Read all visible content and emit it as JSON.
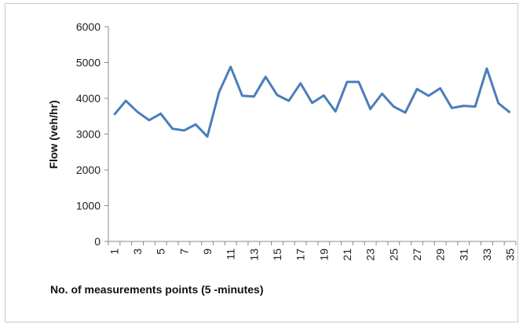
{
  "chart_data": {
    "type": "line",
    "xlabel": "No. of measurements points (5 -minutes)",
    "ylabel": "Flow (veh/hr)",
    "ylim": [
      0,
      6000
    ],
    "yticks": [
      0,
      1000,
      2000,
      3000,
      4000,
      5000,
      6000
    ],
    "x": [
      1,
      2,
      3,
      4,
      5,
      6,
      7,
      8,
      9,
      10,
      11,
      12,
      13,
      14,
      15,
      16,
      17,
      18,
      19,
      20,
      21,
      22,
      23,
      24,
      25,
      26,
      27,
      28,
      29,
      30,
      31,
      32,
      33,
      34,
      35
    ],
    "xtick_labels": [
      "1",
      "3",
      "5",
      "7",
      "9",
      "11",
      "13",
      "15",
      "17",
      "19",
      "21",
      "23",
      "25",
      "27",
      "29",
      "31",
      "33",
      "35"
    ],
    "series": [
      {
        "color": "#4a7ebb",
        "values": [
          3540,
          3930,
          3620,
          3390,
          3570,
          3150,
          3100,
          3270,
          2930,
          4170,
          4880,
          4070,
          4050,
          4600,
          4090,
          3930,
          4420,
          3870,
          4080,
          3630,
          4460,
          4460,
          3700,
          4130,
          3770,
          3600,
          4260,
          4070,
          4280,
          3730,
          3790,
          3770,
          4830,
          3860,
          3600
        ]
      }
    ],
    "grid": false,
    "legend": "none"
  }
}
